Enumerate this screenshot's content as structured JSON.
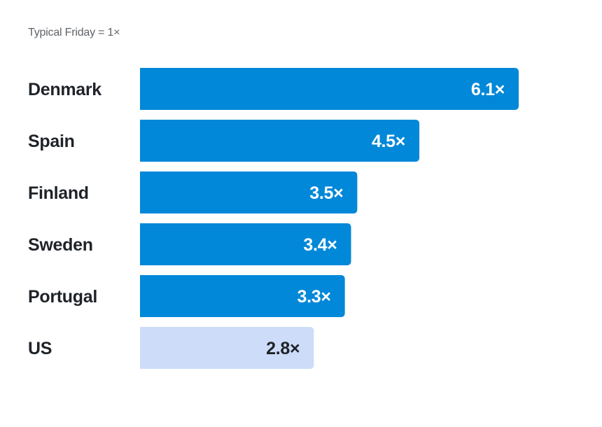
{
  "subtitle": "Typical Friday = 1×",
  "colors": {
    "primary_bar": "#0288d8",
    "highlight_bar": "#cddcf8",
    "primary_text": "#ffffff",
    "highlight_text": "#1f2328"
  },
  "chart_data": {
    "type": "bar",
    "orientation": "horizontal",
    "subtitle": "Typical Friday = 1×",
    "categories": [
      "Denmark",
      "Spain",
      "Finland",
      "Sweden",
      "Portugal",
      "US"
    ],
    "values": [
      6.1,
      4.5,
      3.5,
      3.4,
      3.3,
      2.8
    ],
    "value_labels": [
      "6.1×",
      "4.5×",
      "3.5×",
      "3.4×",
      "3.3×",
      "2.8×"
    ],
    "highlighted": [
      "US"
    ],
    "xlim": [
      0,
      6.1
    ],
    "grid": false,
    "legend": "none"
  }
}
